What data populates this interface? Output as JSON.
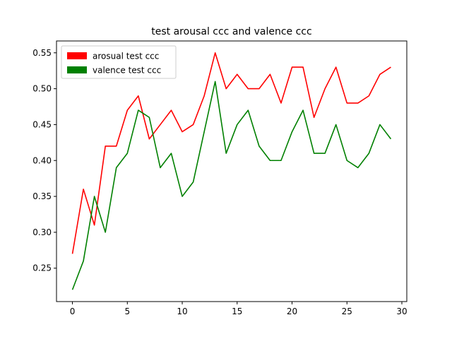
{
  "chart_data": {
    "type": "line",
    "title": "test arousal ccc and valence ccc",
    "xlabel": "",
    "ylabel": "",
    "x": [
      0,
      1,
      2,
      3,
      4,
      5,
      6,
      7,
      8,
      9,
      10,
      11,
      12,
      13,
      14,
      15,
      16,
      17,
      18,
      19,
      20,
      21,
      22,
      23,
      24,
      25,
      26,
      27,
      28,
      29
    ],
    "xlim": [
      -1.45,
      30.45
    ],
    "ylim": [
      0.2035,
      0.5665
    ],
    "xticks": [
      0,
      5,
      10,
      15,
      20,
      25,
      30
    ],
    "yticks": [
      0.25,
      0.3,
      0.35,
      0.4,
      0.45,
      0.5,
      0.55
    ],
    "xtick_labels": [
      "0",
      "5",
      "10",
      "15",
      "20",
      "25",
      "30"
    ],
    "ytick_labels": [
      "0.25",
      "0.30",
      "0.35",
      "0.40",
      "0.45",
      "0.50",
      "0.55"
    ],
    "grid": false,
    "legend_position": "top-left",
    "series": [
      {
        "name": "arosual test ccc",
        "color": "#ff0000",
        "values": [
          0.27,
          0.36,
          0.31,
          0.42,
          0.42,
          0.47,
          0.49,
          0.43,
          0.45,
          0.47,
          0.44,
          0.45,
          0.49,
          0.55,
          0.5,
          0.52,
          0.5,
          0.5,
          0.52,
          0.48,
          0.53,
          0.53,
          0.46,
          0.5,
          0.53,
          0.48,
          0.48,
          0.49,
          0.52,
          0.53
        ]
      },
      {
        "name": "valence test ccc",
        "color": "#008000",
        "values": [
          0.22,
          0.26,
          0.35,
          0.3,
          0.39,
          0.41,
          0.47,
          0.46,
          0.39,
          0.41,
          0.35,
          0.37,
          0.44,
          0.51,
          0.41,
          0.45,
          0.47,
          0.42,
          0.4,
          0.4,
          0.44,
          0.47,
          0.41,
          0.41,
          0.45,
          0.4,
          0.39,
          0.41,
          0.45,
          0.43
        ]
      }
    ]
  }
}
